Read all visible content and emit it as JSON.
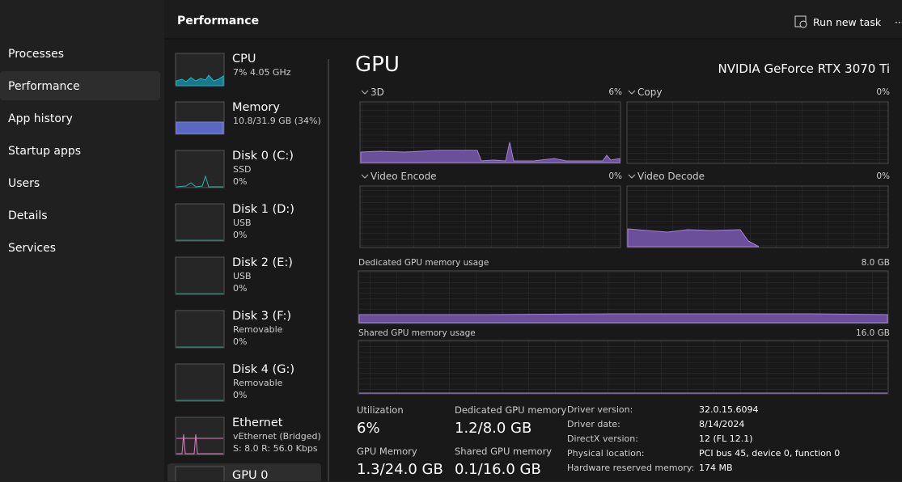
{
  "nav": {
    "items": [
      "Processes",
      "Performance",
      "App history",
      "Startup apps",
      "Users",
      "Details",
      "Services"
    ]
  },
  "header": {
    "title": "Performance",
    "run_task": "Run new task",
    "more": "···"
  },
  "devices": [
    {
      "name": "CPU",
      "lines": [
        "7% 4.05 GHz"
      ]
    },
    {
      "name": "Memory",
      "lines": [
        "10.8/31.9 GB (34%)"
      ]
    },
    {
      "name": "Disk 0 (C:)",
      "lines": [
        "SSD",
        "0%"
      ]
    },
    {
      "name": "Disk 1 (D:)",
      "lines": [
        "USB",
        "0%"
      ]
    },
    {
      "name": "Disk 2 (E:)",
      "lines": [
        "USB",
        "0%"
      ]
    },
    {
      "name": "Disk 3 (F:)",
      "lines": [
        "Removable",
        "0%"
      ]
    },
    {
      "name": "Disk 4 (G:)",
      "lines": [
        "Removable",
        "0%"
      ]
    },
    {
      "name": "Ethernet",
      "lines": [
        "vEthernet (Bridged)",
        "S: 8.0  R: 56.0 Kbps"
      ]
    },
    {
      "name": "GPU 0",
      "lines": []
    }
  ],
  "gpu": {
    "title": "GPU",
    "model": "NVIDIA GeForce RTX 3070 Ti",
    "graphs": [
      {
        "label": "3D",
        "value": "6%"
      },
      {
        "label": "Copy",
        "value": "0%"
      },
      {
        "label": "Video Encode",
        "value": "0%"
      },
      {
        "label": "Video Decode",
        "value": "0%"
      }
    ],
    "memory_graphs": [
      {
        "label": "Dedicated GPU memory usage",
        "value": "8.0 GB"
      },
      {
        "label": "Shared GPU memory usage",
        "value": "16.0 GB"
      }
    ],
    "stats": [
      {
        "label": "Utilization",
        "value": "6%"
      },
      {
        "label": "Dedicated GPU memory",
        "value": "1.2/8.0 GB"
      },
      {
        "label": "GPU Memory",
        "value": "1.3/24.0 GB"
      },
      {
        "label": "Shared GPU memory",
        "value": "0.1/16.0 GB"
      }
    ],
    "details": [
      {
        "label": "Driver version:",
        "value": "32.0.15.6094"
      },
      {
        "label": "Driver date:",
        "value": "8/14/2024"
      },
      {
        "label": "DirectX version:",
        "value": "12 (FL 12.1)"
      },
      {
        "label": "Physical location:",
        "value": "PCI bus 45, device 0, function 0"
      },
      {
        "label": "Hardware reserved memory:",
        "value": "174 MB"
      }
    ]
  }
}
